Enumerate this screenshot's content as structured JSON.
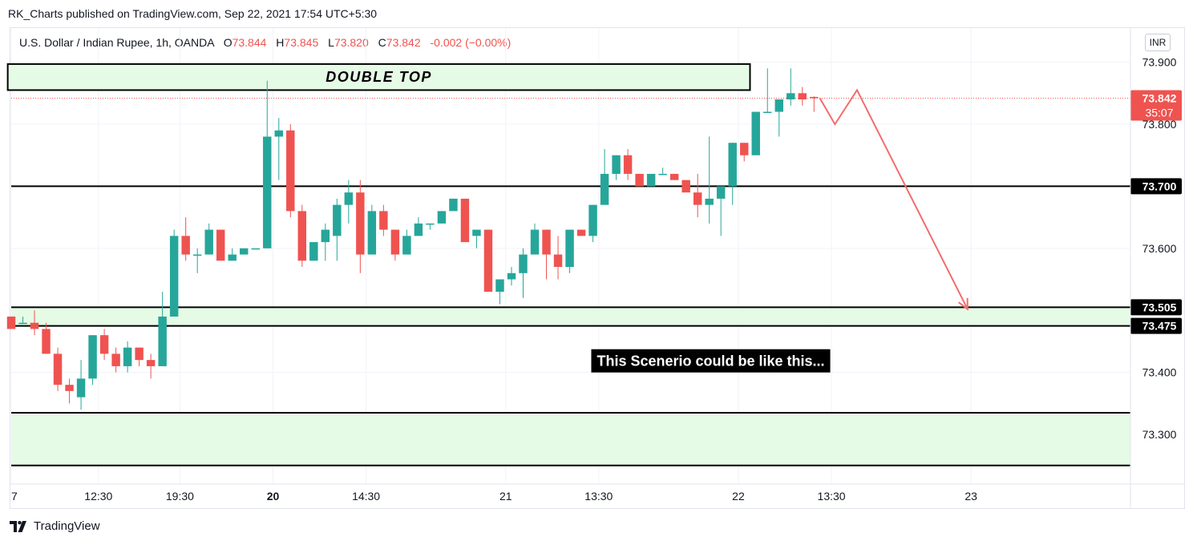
{
  "publisher_line": "RK_Charts published on TradingView.com, Sep 22, 2021 17:54 UTC+5:30",
  "legend": {
    "symbol": "U.S. Dollar / Indian Rupee, 1h, OANDA",
    "o_label": "O",
    "o": "73.844",
    "h_label": "H",
    "h": "73.845",
    "l_label": "L",
    "l": "73.820",
    "c_label": "C",
    "c": "73.842",
    "change": "-0.002 (−0.00%)"
  },
  "currency_label": "INR",
  "footer_brand": "TradingView",
  "colors": {
    "up": "#26a69a",
    "down": "#ef5350",
    "zone": "#e6fbe6",
    "line": "#000000",
    "grid": "#f0f3fa",
    "arrow": "#f26d6d"
  },
  "icons": [
    "tradingview-logo-icon"
  ],
  "chart_data": {
    "type": "candlestick",
    "ylim": [
      73.22,
      73.955
    ],
    "xlim": [
      0,
      96.2
    ],
    "grid": true,
    "y_ticks": [
      "73.900",
      "73.800",
      "73.600",
      "73.400",
      "73.300"
    ],
    "x_ticks": [
      {
        "label": "7",
        "x": 0,
        "bold": false
      },
      {
        "label": "12:30",
        "x": 7.5,
        "bold": false
      },
      {
        "label": "19:30",
        "x": 14.5,
        "bold": false
      },
      {
        "label": "20",
        "x": 22.5,
        "bold": true
      },
      {
        "label": "14:30",
        "x": 30.5,
        "bold": false
      },
      {
        "label": "21",
        "x": 42.5,
        "bold": false
      },
      {
        "label": "13:30",
        "x": 50.5,
        "bold": false
      },
      {
        "label": "22",
        "x": 62.5,
        "bold": false
      },
      {
        "label": "13:30",
        "x": 70.5,
        "bold": false
      },
      {
        "label": "23",
        "x": 82.5,
        "bold": false
      }
    ],
    "candles": [
      [
        73.49,
        73.49,
        73.47,
        73.47
      ],
      [
        73.48,
        73.49,
        73.48,
        73.48
      ],
      [
        73.48,
        73.5,
        73.46,
        73.47
      ],
      [
        73.47,
        73.48,
        73.43,
        73.43
      ],
      [
        73.43,
        73.44,
        73.37,
        73.38
      ],
      [
        73.38,
        73.39,
        73.35,
        73.37
      ],
      [
        73.36,
        73.42,
        73.34,
        73.39
      ],
      [
        73.39,
        73.46,
        73.38,
        73.46
      ],
      [
        73.46,
        73.47,
        73.42,
        73.43
      ],
      [
        73.43,
        73.44,
        73.4,
        73.41
      ],
      [
        73.41,
        73.45,
        73.4,
        73.44
      ],
      [
        73.44,
        73.44,
        73.41,
        73.42
      ],
      [
        73.42,
        73.43,
        73.39,
        73.41
      ],
      [
        73.41,
        73.53,
        73.41,
        73.49
      ],
      [
        73.49,
        73.63,
        73.49,
        73.62
      ],
      [
        73.62,
        73.65,
        73.58,
        73.59
      ],
      [
        73.59,
        73.6,
        73.56,
        73.59
      ],
      [
        73.59,
        73.64,
        73.59,
        73.63
      ],
      [
        73.63,
        73.63,
        73.58,
        73.58
      ],
      [
        73.58,
        73.6,
        73.58,
        73.59
      ],
      [
        73.59,
        73.6,
        73.59,
        73.6
      ],
      [
        73.6,
        73.6,
        73.6,
        73.6
      ],
      [
        73.6,
        73.87,
        73.6,
        73.78
      ],
      [
        73.78,
        73.81,
        73.71,
        73.79
      ],
      [
        73.79,
        73.8,
        73.65,
        73.66
      ],
      [
        73.66,
        73.67,
        73.57,
        73.58
      ],
      [
        73.58,
        73.61,
        73.58,
        73.61
      ],
      [
        73.61,
        73.64,
        73.58,
        73.63
      ],
      [
        73.62,
        73.68,
        73.58,
        73.67
      ],
      [
        73.67,
        73.71,
        73.64,
        73.69
      ],
      [
        73.69,
        73.71,
        73.56,
        73.59
      ],
      [
        73.59,
        73.67,
        73.59,
        73.66
      ],
      [
        73.66,
        73.67,
        73.62,
        73.63
      ],
      [
        73.63,
        73.63,
        73.58,
        73.59
      ],
      [
        73.59,
        73.63,
        73.59,
        73.62
      ],
      [
        73.62,
        73.65,
        73.62,
        73.64
      ],
      [
        73.64,
        73.64,
        73.63,
        73.64
      ],
      [
        73.64,
        73.66,
        73.64,
        73.66
      ],
      [
        73.66,
        73.68,
        73.66,
        73.68
      ],
      [
        73.68,
        73.68,
        73.61,
        73.61
      ],
      [
        73.62,
        73.63,
        73.6,
        73.63
      ],
      [
        73.63,
        73.63,
        73.53,
        73.53
      ],
      [
        73.53,
        73.55,
        73.51,
        73.55
      ],
      [
        73.55,
        73.57,
        73.54,
        73.56
      ],
      [
        73.56,
        73.6,
        73.52,
        73.59
      ],
      [
        73.59,
        73.64,
        73.59,
        73.63
      ],
      [
        73.63,
        73.63,
        73.55,
        73.59
      ],
      [
        73.59,
        73.62,
        73.55,
        73.57
      ],
      [
        73.57,
        73.63,
        73.56,
        73.63
      ],
      [
        73.63,
        73.63,
        73.62,
        73.62
      ],
      [
        73.62,
        73.67,
        73.61,
        73.67
      ],
      [
        73.67,
        73.76,
        73.67,
        73.72
      ],
      [
        73.72,
        73.75,
        73.71,
        73.75
      ],
      [
        73.75,
        73.76,
        73.71,
        73.72
      ],
      [
        73.72,
        73.72,
        73.7,
        73.7
      ],
      [
        73.7,
        73.72,
        73.7,
        73.72
      ],
      [
        73.72,
        73.73,
        73.72,
        73.72
      ],
      [
        73.72,
        73.72,
        73.71,
        73.71
      ],
      [
        73.71,
        73.71,
        73.69,
        73.69
      ],
      [
        73.69,
        73.72,
        73.65,
        73.67
      ],
      [
        73.67,
        73.78,
        73.64,
        73.68
      ],
      [
        73.68,
        73.7,
        73.62,
        73.7
      ],
      [
        73.7,
        73.77,
        73.67,
        73.77
      ],
      [
        73.77,
        73.77,
        73.74,
        73.75
      ],
      [
        73.75,
        73.82,
        73.75,
        73.82
      ],
      [
        73.82,
        73.89,
        73.82,
        73.82
      ],
      [
        73.82,
        73.84,
        73.78,
        73.84
      ],
      [
        73.84,
        73.89,
        73.83,
        73.85
      ],
      [
        73.85,
        73.86,
        73.83,
        73.84
      ],
      [
        73.844,
        73.845,
        73.82,
        73.842
      ]
    ],
    "current_price": {
      "value": 73.842,
      "label": "73.842",
      "countdown": "35:07"
    },
    "levels": [
      {
        "value": 73.7,
        "label": "73.700"
      },
      {
        "value": 73.505,
        "label": "73.505"
      },
      {
        "value": 73.475,
        "label": "73.475"
      },
      {
        "value": 73.335,
        "label": ""
      },
      {
        "value": 73.25,
        "label": ""
      }
    ],
    "zones": [
      {
        "top": 73.505,
        "bottom": 73.475
      },
      {
        "top": 73.335,
        "bottom": 73.25
      }
    ],
    "annotations": [
      {
        "kind": "box",
        "text": "DOUBLE TOP",
        "x0": -0.3,
        "x1": 63.5,
        "y0": 73.855,
        "y1": 73.897
      },
      {
        "kind": "note",
        "text": "This Scenerio could be like this...",
        "x": 50.2,
        "y": 73.418
      }
    ],
    "projection": [
      [
        69.5,
        73.842
      ],
      [
        70.8,
        73.8
      ],
      [
        72.7,
        73.855
      ],
      [
        82.2,
        73.502
      ]
    ]
  }
}
